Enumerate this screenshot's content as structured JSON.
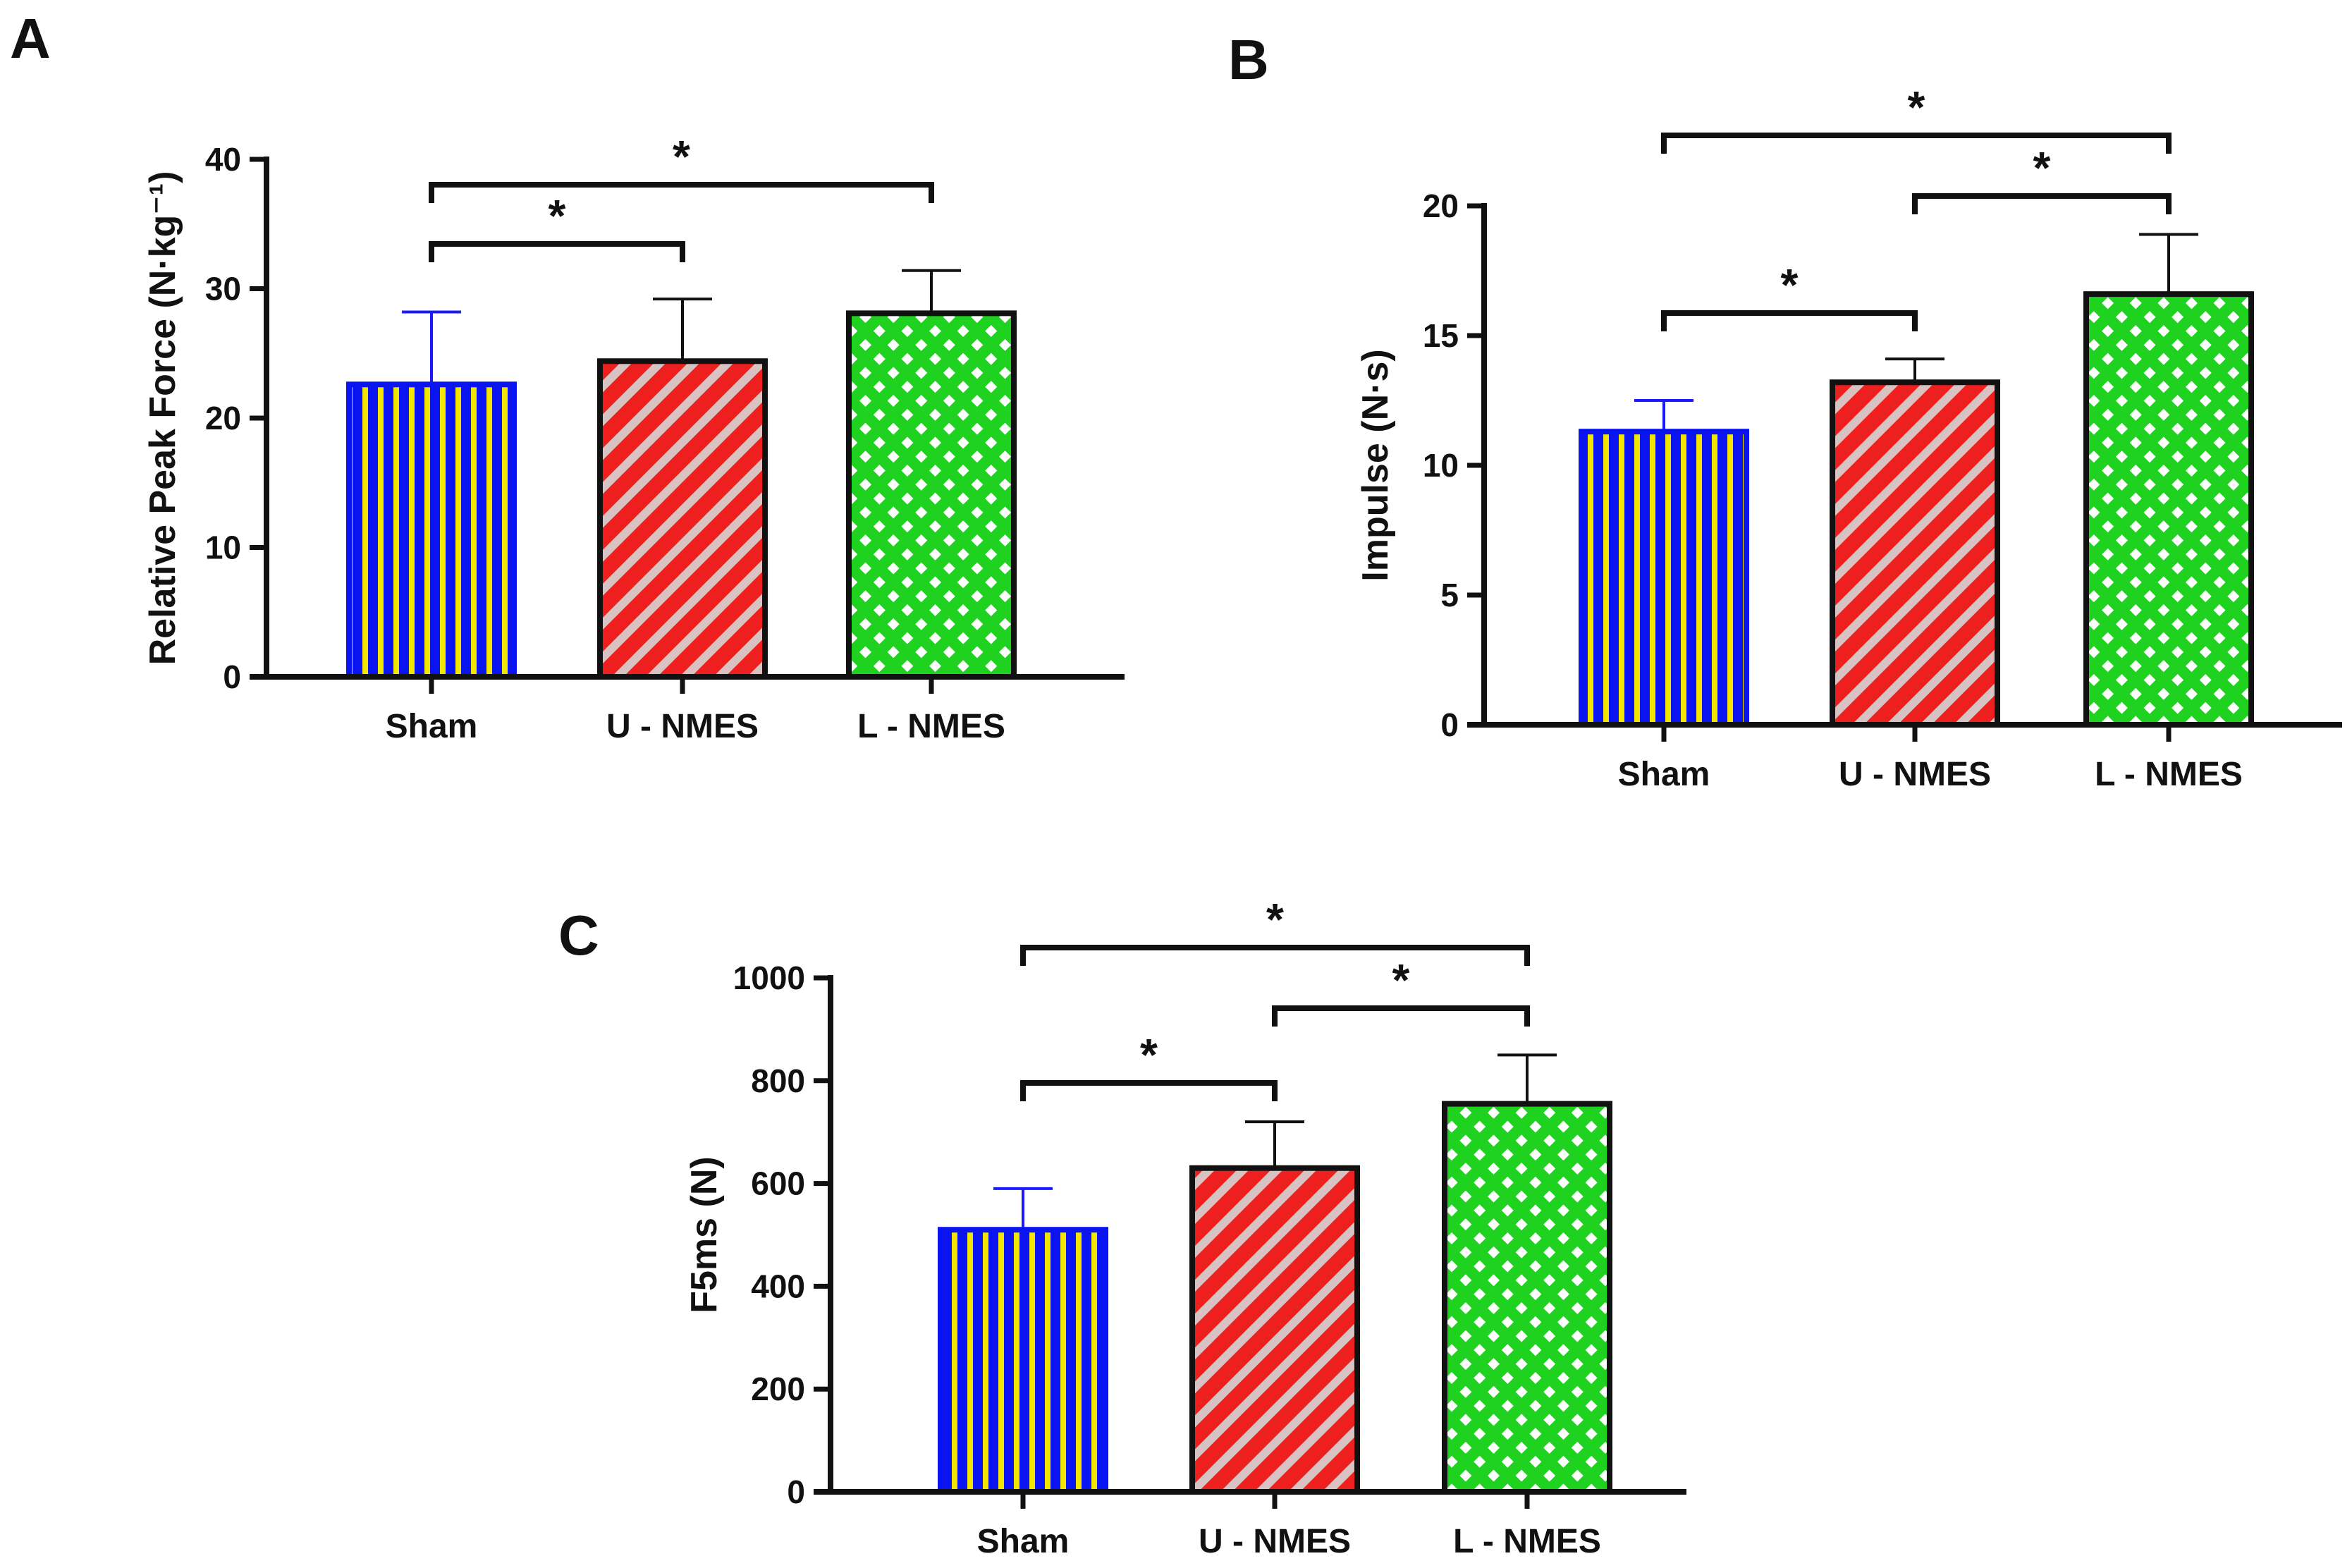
{
  "chart_data": [
    {
      "panel": "A",
      "type": "bar",
      "categories": [
        "Sham",
        "U - NMES",
        "L - NMES"
      ],
      "values": [
        22.6,
        24.4,
        28.1
      ],
      "errors": [
        5.6,
        4.8,
        3.3
      ],
      "ylabel": "Relative Peak Force (N·kg⁻¹)",
      "ylim": [
        0,
        40
      ],
      "yticks": [
        "0",
        "10",
        "20",
        "30",
        "40"
      ],
      "significance": [
        {
          "from": 0,
          "to": 1,
          "label": "*"
        },
        {
          "from": 0,
          "to": 2,
          "label": "*"
        }
      ]
    },
    {
      "panel": "B",
      "type": "bar",
      "categories": [
        "Sham",
        "U - NMES",
        "L - NMES"
      ],
      "values": [
        11.3,
        13.2,
        16.6
      ],
      "errors": [
        1.2,
        0.9,
        2.3
      ],
      "ylabel": "Impulse (N·s)",
      "ylim": [
        0,
        20
      ],
      "yticks": [
        "0",
        "5",
        "10",
        "15",
        "20"
      ],
      "significance": [
        {
          "from": 0,
          "to": 1,
          "label": "*"
        },
        {
          "from": 1,
          "to": 2,
          "label": "*"
        },
        {
          "from": 0,
          "to": 2,
          "label": "*"
        }
      ]
    },
    {
      "panel": "C",
      "type": "bar",
      "categories": [
        "Sham",
        "U - NMES",
        "L - NMES"
      ],
      "values": [
        510,
        630,
        755
      ],
      "errors": [
        80,
        90,
        95
      ],
      "ylabel": "F5ms (N)",
      "ylim": [
        0,
        1000
      ],
      "yticks": [
        "0",
        "200",
        "400",
        "600",
        "800",
        "1000"
      ],
      "significance": [
        {
          "from": 0,
          "to": 1,
          "label": "*"
        },
        {
          "from": 1,
          "to": 2,
          "label": "*"
        },
        {
          "from": 0,
          "to": 2,
          "label": "*"
        }
      ]
    }
  ],
  "colors": {
    "sham_fill": "#0a14f0",
    "sham_stripe": "#f2e600",
    "sham_error": "#1a1aff",
    "unmes_fill": "#ee1f1f",
    "unmes_stripe": "#d9c2c2",
    "lnmes_fill": "#1fd21f",
    "lnmes_dot": "#ffffff",
    "ink": "#111111"
  }
}
